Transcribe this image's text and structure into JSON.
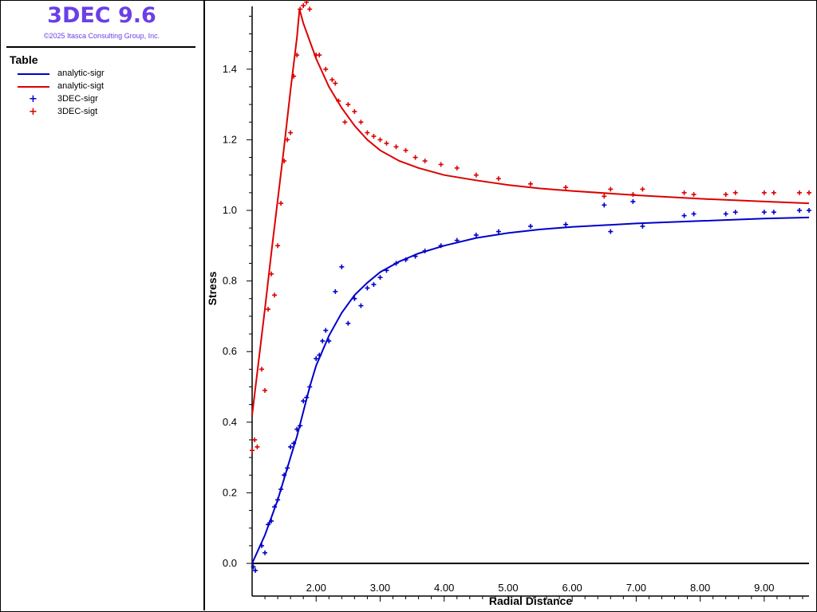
{
  "app": {
    "title": "3DEC 9.6",
    "copyright": "©2025 Itasca Consulting Group, Inc."
  },
  "legend": {
    "title": "Table",
    "items": [
      {
        "label": "analytic-sigr",
        "style": "line",
        "color": "#0000cc"
      },
      {
        "label": "analytic-sigt",
        "style": "line",
        "color": "#dd0000"
      },
      {
        "label": "3DEC-sigr",
        "style": "marker",
        "color": "#0000cc"
      },
      {
        "label": "3DEC-sigt",
        "style": "marker",
        "color": "#dd0000"
      }
    ]
  },
  "chart_data": {
    "type": "line",
    "xlabel": "Radial Distance",
    "ylabel": "Stress",
    "xlim": [
      1.0,
      9.7
    ],
    "ylim": [
      0.0,
      1.58
    ],
    "x_ticks": [
      "2.00",
      "3.00",
      "4.00",
      "5.00",
      "6.00",
      "7.00",
      "8.00",
      "9.00"
    ],
    "y_ticks": [
      "0.0",
      "0.2",
      "0.4",
      "0.6",
      "0.8",
      "1.0",
      "1.2",
      "1.4"
    ],
    "grid": false,
    "legend_position": "left-panel",
    "series": [
      {
        "name": "analytic-sigr",
        "kind": "line",
        "color": "#0000cc",
        "x": [
          1.0,
          1.1,
          1.2,
          1.3,
          1.4,
          1.5,
          1.6,
          1.7,
          1.8,
          1.9,
          2.0,
          2.2,
          2.4,
          2.6,
          2.8,
          3.0,
          3.3,
          3.6,
          4.0,
          4.5,
          5.0,
          5.5,
          6.0,
          7.0,
          8.0,
          9.0,
          9.7
        ],
        "y": [
          0.0,
          0.04,
          0.08,
          0.13,
          0.18,
          0.24,
          0.3,
          0.36,
          0.43,
          0.5,
          0.56,
          0.645,
          0.71,
          0.76,
          0.795,
          0.825,
          0.855,
          0.878,
          0.9,
          0.922,
          0.936,
          0.946,
          0.953,
          0.963,
          0.97,
          0.977,
          0.98
        ]
      },
      {
        "name": "analytic-sigt",
        "kind": "line",
        "color": "#dd0000",
        "x": [
          1.0,
          1.1,
          1.2,
          1.3,
          1.4,
          1.5,
          1.6,
          1.7,
          1.74,
          1.8,
          1.9,
          2.0,
          2.2,
          2.4,
          2.6,
          2.8,
          3.0,
          3.3,
          3.6,
          4.0,
          4.5,
          5.0,
          5.5,
          6.0,
          7.0,
          8.0,
          9.0,
          9.7
        ],
        "y": [
          0.42,
          0.57,
          0.72,
          0.88,
          1.03,
          1.18,
          1.34,
          1.49,
          1.57,
          1.53,
          1.48,
          1.43,
          1.35,
          1.29,
          1.24,
          1.2,
          1.17,
          1.14,
          1.12,
          1.1,
          1.085,
          1.072,
          1.062,
          1.055,
          1.043,
          1.033,
          1.025,
          1.02
        ]
      },
      {
        "name": "3DEC-sigr",
        "kind": "scatter",
        "color": "#0000cc",
        "x": [
          1.02,
          1.05,
          1.15,
          1.2,
          1.25,
          1.3,
          1.35,
          1.4,
          1.45,
          1.5,
          1.55,
          1.6,
          1.65,
          1.7,
          1.75,
          1.8,
          1.85,
          1.9,
          2.0,
          2.05,
          2.1,
          2.15,
          2.2,
          2.3,
          2.4,
          2.5,
          2.6,
          2.7,
          2.8,
          2.9,
          3.0,
          3.1,
          3.25,
          3.4,
          3.55,
          3.7,
          3.95,
          4.2,
          4.5,
          4.85,
          5.35,
          5.9,
          6.5,
          6.6,
          6.95,
          7.1,
          7.75,
          7.9,
          8.4,
          8.55,
          9.0,
          9.15,
          9.55,
          9.7
        ],
        "y": [
          -0.01,
          -0.02,
          0.05,
          0.03,
          0.11,
          0.12,
          0.16,
          0.18,
          0.21,
          0.25,
          0.27,
          0.33,
          0.34,
          0.38,
          0.39,
          0.46,
          0.47,
          0.5,
          0.58,
          0.59,
          0.63,
          0.66,
          0.63,
          0.77,
          0.84,
          0.68,
          0.75,
          0.73,
          0.78,
          0.79,
          0.81,
          0.83,
          0.85,
          0.86,
          0.87,
          0.885,
          0.9,
          0.915,
          0.93,
          0.94,
          0.955,
          0.96,
          1.015,
          0.94,
          1.025,
          0.955,
          0.985,
          0.99,
          0.99,
          0.995,
          0.995,
          0.995,
          1.0,
          1.0
        ]
      },
      {
        "name": "3DEC-sigt",
        "kind": "scatter",
        "color": "#dd0000",
        "x": [
          1.0,
          1.04,
          1.08,
          1.15,
          1.2,
          1.25,
          1.3,
          1.35,
          1.4,
          1.45,
          1.5,
          1.55,
          1.6,
          1.65,
          1.7,
          1.75,
          1.8,
          1.85,
          1.9,
          2.0,
          2.05,
          2.15,
          2.25,
          2.3,
          2.35,
          2.45,
          2.5,
          2.6,
          2.7,
          2.8,
          2.9,
          3.0,
          3.1,
          3.25,
          3.4,
          3.55,
          3.7,
          3.95,
          4.2,
          4.5,
          4.85,
          5.35,
          5.9,
          6.5,
          6.6,
          6.95,
          7.1,
          7.75,
          7.9,
          8.4,
          8.55,
          9.0,
          9.15,
          9.55,
          9.7
        ],
        "y": [
          0.32,
          0.35,
          0.33,
          0.55,
          0.49,
          0.72,
          0.82,
          0.76,
          0.9,
          1.02,
          1.14,
          1.2,
          1.22,
          1.38,
          1.44,
          1.57,
          1.58,
          1.59,
          1.57,
          1.44,
          1.44,
          1.4,
          1.37,
          1.36,
          1.31,
          1.25,
          1.3,
          1.28,
          1.25,
          1.22,
          1.21,
          1.2,
          1.19,
          1.18,
          1.17,
          1.15,
          1.14,
          1.13,
          1.12,
          1.1,
          1.09,
          1.075,
          1.065,
          1.04,
          1.06,
          1.045,
          1.06,
          1.05,
          1.045,
          1.045,
          1.05,
          1.05,
          1.05,
          1.05,
          1.05
        ]
      }
    ]
  }
}
